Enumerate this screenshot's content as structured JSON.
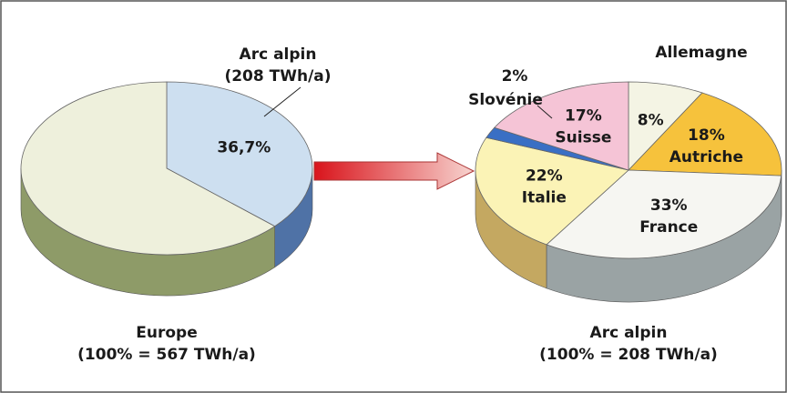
{
  "chart_data": [
    {
      "type": "pie",
      "title": "Europe",
      "subtitle": "(100% = 567 TWh/a)",
      "categories": [
        "Arc alpin",
        null
      ],
      "annotation": "(208 TWh/a)",
      "values": [
        36.7,
        63.3
      ],
      "value_labels": [
        "36,7%",
        null
      ],
      "colors": [
        "#cddff0",
        "#eef0dc"
      ],
      "side_colors": [
        "#4f72a6",
        "#8e9b68"
      ]
    },
    {
      "type": "pie",
      "title": "Arc alpin",
      "subtitle": "(100% = 208 TWh/a)",
      "categories": [
        "Allemagne",
        "Autriche",
        "France",
        "Italie",
        "Slovénie",
        "Suisse"
      ],
      "values": [
        8,
        18,
        33,
        22,
        2,
        17
      ],
      "value_labels": [
        "8%",
        "18%",
        "33%",
        "22%",
        "2%",
        "17%"
      ],
      "colors": [
        "#f4f4e4",
        "#f6c23c",
        "#f6f6f2",
        "#fbf3b6",
        "#3a6fc4",
        "#f5c4d6"
      ],
      "side_colors": [
        "#b9b9a4",
        "#b98d22",
        "#9aa3a4",
        "#c4a861",
        "#264f94",
        "#b98898"
      ]
    }
  ]
}
